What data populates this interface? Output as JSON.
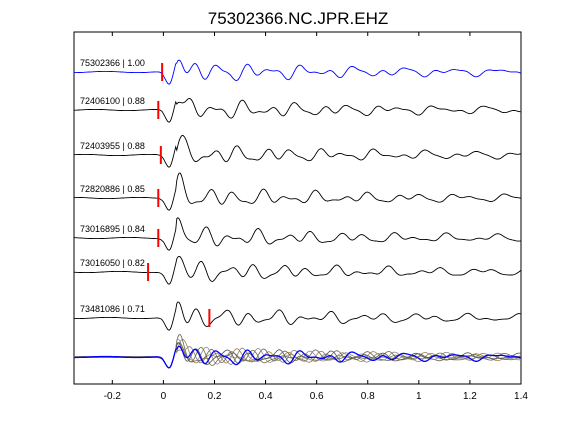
{
  "title": "75302366.NC.JPR.EHZ",
  "colors": {
    "reference_trace": "#0000ff",
    "trace": "#000000",
    "pick_marker": "#ff0000",
    "overlay_traces": [
      "#808080",
      "#a08040",
      "#606060",
      "#8c8c8c",
      "#7a6a3a",
      "#505050"
    ]
  },
  "chart_data": {
    "type": "line",
    "title": "75302366.NC.JPR.EHZ",
    "xlabel": "",
    "ylabel": "",
    "xlim": [
      -0.35,
      1.4
    ],
    "xticks": [
      -0.2,
      0,
      0.2,
      0.4,
      0.6,
      0.8,
      1,
      1.2,
      1.4
    ],
    "xtick_labels": [
      "-0.2",
      "0",
      "0.2",
      "0.4",
      "0.6",
      "0.8",
      "1",
      "1.2",
      "1.4"
    ],
    "grid": false,
    "series": [
      {
        "name": "75302366 | 1.00",
        "pick_time": -0.005,
        "color": "#0000ff"
      },
      {
        "name": "72406100 | 0.88",
        "pick_time": -0.02,
        "color": "#000000"
      },
      {
        "name": "72403955 | 0.88",
        "pick_time": -0.01,
        "color": "#000000"
      },
      {
        "name": "72820886 | 0.85",
        "pick_time": -0.02,
        "color": "#000000"
      },
      {
        "name": "73016895 | 0.84",
        "pick_time": -0.02,
        "color": "#000000"
      },
      {
        "name": "73016050 | 0.82",
        "pick_time": -0.06,
        "color": "#000000"
      },
      {
        "name": "73481086 | 0.71",
        "pick_time": 0.18,
        "color": "#000000"
      }
    ],
    "stack_overlay": true
  }
}
